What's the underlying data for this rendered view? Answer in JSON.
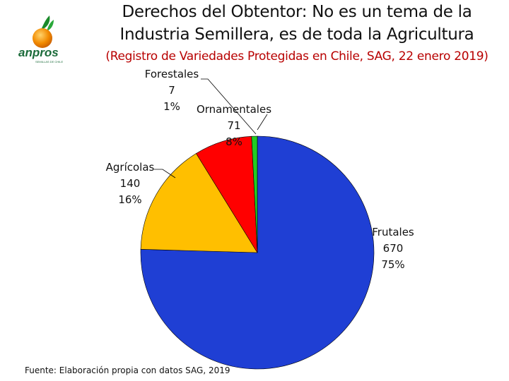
{
  "header": {
    "title_line1": "Derechos del Obtentor:  No es un tema de la",
    "title_line2": "Industria Semillera, es de toda la Agricultura",
    "subtitle": "(Registro de Variedades Protegidas en Chile, SAG, 22 enero 2019)"
  },
  "logo": {
    "text": "anpros",
    "tagline": "SEMILLAS DE CHILE"
  },
  "chart_data": {
    "type": "pie",
    "title": "",
    "slices": [
      {
        "label": "Frutales",
        "value": 670,
        "percent": "75%",
        "color": "#1f3fd4"
      },
      {
        "label": "Agrícolas",
        "value": 140,
        "percent": "16%",
        "color": "#ffbf00"
      },
      {
        "label": "Ornamentales",
        "value": 71,
        "percent": "8%",
        "color": "#ff0000"
      },
      {
        "label": "Forestales",
        "value": 7,
        "percent": "1%",
        "color": "#22cc22"
      }
    ]
  },
  "footer": {
    "source": "Fuente: Elaboración propia con datos SAG, 2019"
  }
}
